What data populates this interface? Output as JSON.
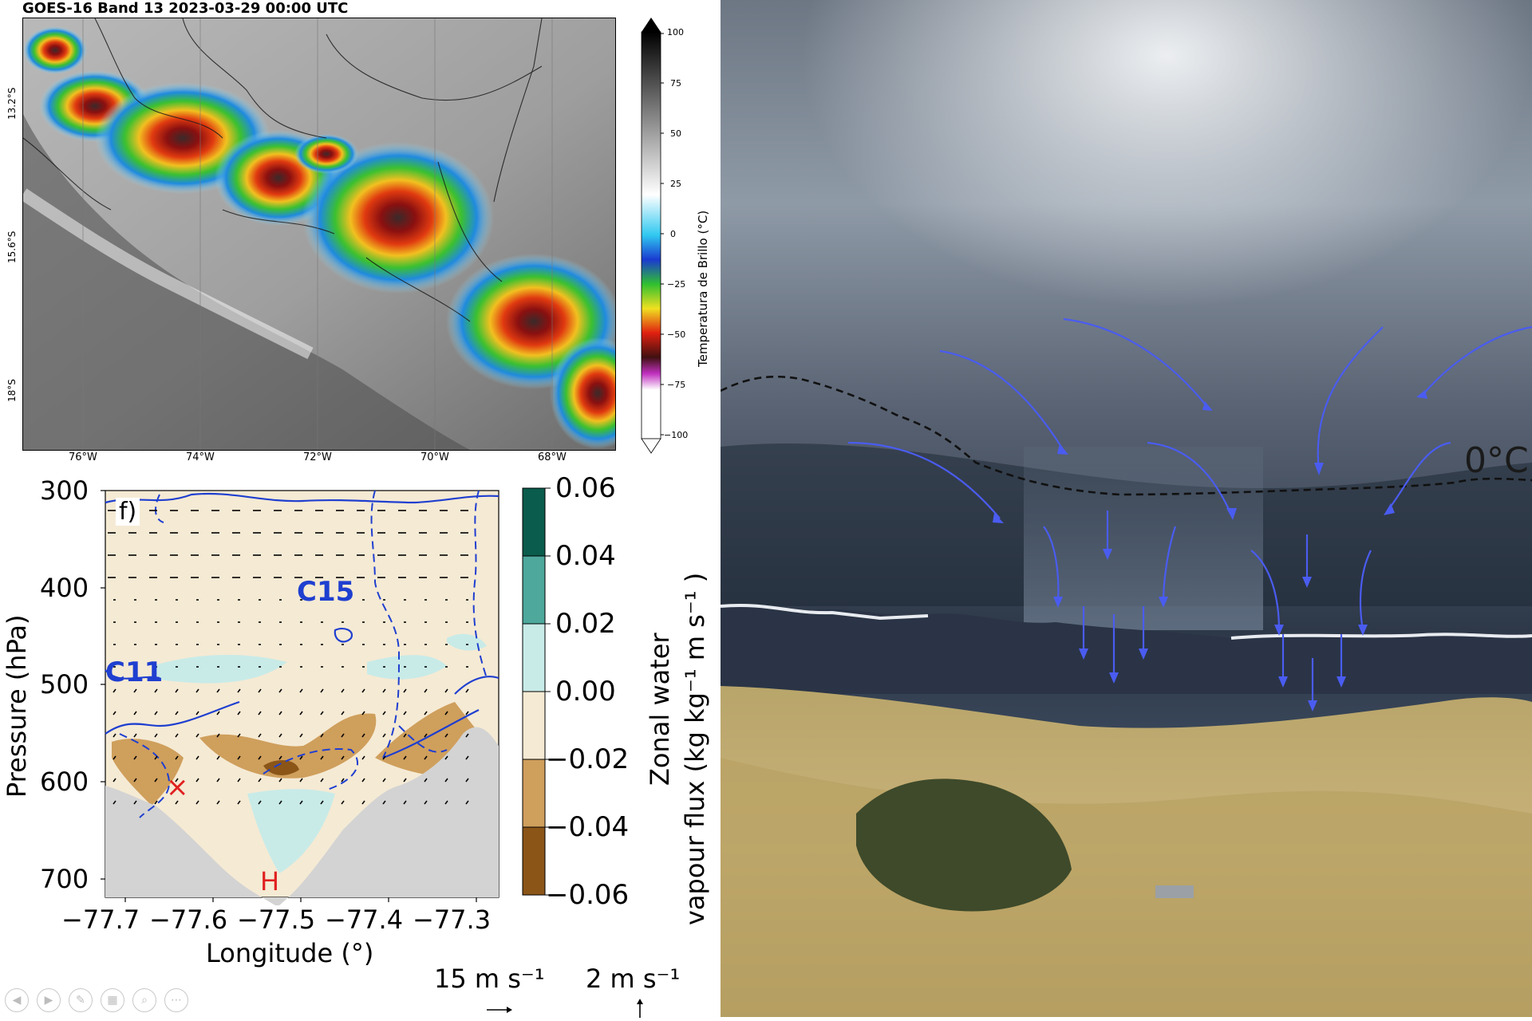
{
  "satellite": {
    "title": "GOES-16 Band 13 2023-03-29 00:00 UTC",
    "lat_labels": [
      "13.2°S",
      "15.6°S",
      "18°S"
    ],
    "lon_labels": [
      "76°W",
      "74°W",
      "72°W",
      "70°W",
      "68°W"
    ],
    "colorbar": {
      "label": "Temperatura de Brillo (°C)",
      "ticks": [
        "100",
        "75",
        "50",
        "25",
        "0",
        "−25",
        "−50",
        "−75",
        "−100"
      ]
    }
  },
  "cross_section": {
    "panel_label": "f)",
    "ylabel": "Pressure (hPa)",
    "xlabel": "Longitude (°)",
    "yticks": [
      "300",
      "400",
      "500",
      "600",
      "700"
    ],
    "xticks": [
      "−77.7",
      "−77.6",
      "−77.5",
      "−77.4",
      "−77.3"
    ],
    "annotations": {
      "c15": "C15",
      "c11": "C11",
      "h_marker": "H",
      "x_marker": "×"
    },
    "colorbar": {
      "label_line1": "Zonal water",
      "label_line2": "vapour flux (kg kg⁻¹ m s⁻¹ )",
      "ticks": [
        "0.06",
        "0.04",
        "0.02",
        "0.00",
        "−0.02",
        "−0.04",
        "−0.06"
      ],
      "colors": [
        "#0a5c4c",
        "#4ea89c",
        "#c8ebe8",
        "#f5ead4",
        "#cf9f5c",
        "#8b5518"
      ]
    },
    "scale_arrows": {
      "horizontal": "15 m s⁻¹",
      "vertical": "2 m s⁻¹"
    }
  },
  "photo": {
    "freezing_label": "0°C"
  },
  "slide_controls": [
    "prev-icon",
    "next-icon",
    "pen-icon",
    "grid-icon",
    "zoom-icon",
    "more-icon"
  ]
}
